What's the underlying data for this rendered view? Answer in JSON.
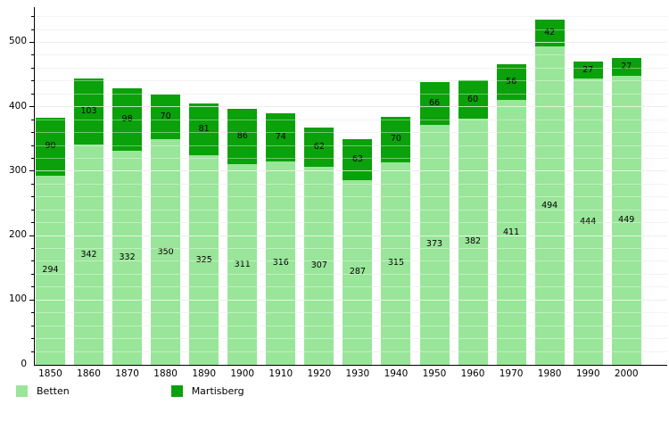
{
  "chart_data": {
    "type": "bar",
    "stacked": true,
    "title": "",
    "xlabel": "",
    "ylabel": "",
    "categories": [
      "1850",
      "1860",
      "1870",
      "1880",
      "1890",
      "1900",
      "1910",
      "1920",
      "1930",
      "1940",
      "1950",
      "1960",
      "1970",
      "1980",
      "1990",
      "2000"
    ],
    "series": [
      {
        "name": "Betten",
        "color": "#99E599",
        "values": [
          294,
          342,
          332,
          350,
          325,
          311,
          316,
          307,
          287,
          315,
          373,
          382,
          411,
          494,
          444,
          449
        ]
      },
      {
        "name": "Martisberg",
        "color": "#0AA10A",
        "values": [
          90,
          103,
          98,
          70,
          81,
          86,
          74,
          62,
          63,
          70,
          66,
          60,
          56,
          42,
          27,
          27
        ]
      }
    ],
    "ylim": [
      0,
      554
    ],
    "yticks": [
      0,
      100,
      200,
      300,
      400,
      500
    ],
    "minor_grid_step": 20,
    "grid": "on",
    "legend_position": "bottom-left",
    "value_labels": "inside-segment-center"
  },
  "legend": {
    "items": [
      {
        "label": "Betten",
        "color": "#99E599"
      },
      {
        "label": "Martisberg",
        "color": "#0AA10A"
      }
    ]
  }
}
